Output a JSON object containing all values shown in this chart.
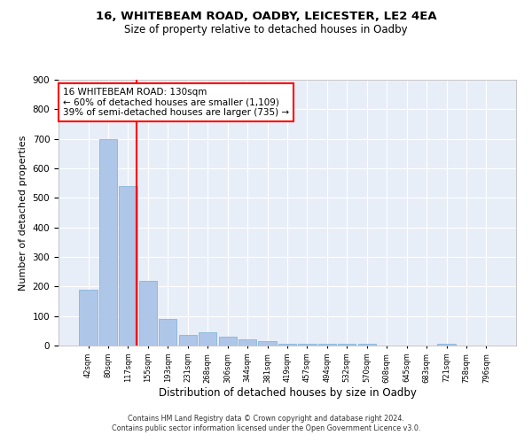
{
  "title1": "16, WHITEBEAM ROAD, OADBY, LEICESTER, LE2 4EA",
  "title2": "Size of property relative to detached houses in Oadby",
  "xlabel": "Distribution of detached houses by size in Oadby",
  "ylabel": "Number of detached properties",
  "bar_labels": [
    "42sqm",
    "80sqm",
    "117sqm",
    "155sqm",
    "193sqm",
    "231sqm",
    "268sqm",
    "306sqm",
    "344sqm",
    "381sqm",
    "419sqm",
    "457sqm",
    "494sqm",
    "532sqm",
    "570sqm",
    "608sqm",
    "645sqm",
    "683sqm",
    "721sqm",
    "758sqm",
    "796sqm"
  ],
  "bar_heights": [
    190,
    700,
    540,
    220,
    90,
    35,
    45,
    30,
    20,
    15,
    5,
    5,
    5,
    5,
    5,
    0,
    0,
    0,
    5,
    0,
    0
  ],
  "bar_color": "#aec6e8",
  "bar_edge_color": "#7aafd4",
  "bg_color": "#e8eef8",
  "grid_color": "#ffffff",
  "red_line_x": 2.42,
  "annotation_title": "16 WHITEBEAM ROAD: 130sqm",
  "annotation_line1": "← 60% of detached houses are smaller (1,109)",
  "annotation_line2": "39% of semi-detached houses are larger (735) →",
  "footnote1": "Contains HM Land Registry data © Crown copyright and database right 2024.",
  "footnote2": "Contains public sector information licensed under the Open Government Licence v3.0.",
  "ylim": [
    0,
    900
  ],
  "yticks": [
    0,
    100,
    200,
    300,
    400,
    500,
    600,
    700,
    800,
    900
  ]
}
